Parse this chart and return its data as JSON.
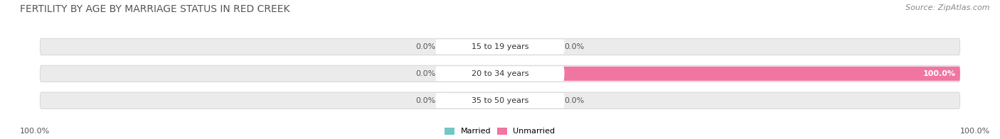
{
  "title": "FERTILITY BY AGE BY MARRIAGE STATUS IN RED CREEK",
  "source": "Source: ZipAtlas.com",
  "categories": [
    "15 to 19 years",
    "20 to 34 years",
    "35 to 50 years"
  ],
  "married_pct": [
    0.0,
    0.0,
    0.0
  ],
  "unmarried_pct": [
    0.0,
    100.0,
    0.0
  ],
  "married_color": "#72c6c6",
  "unmarried_color": "#f075a0",
  "bar_bg_color": "#ebebeb",
  "title_color": "#555555",
  "source_color": "#888888",
  "label_color": "#555555",
  "value_color": "#555555",
  "white_value_color": "#ffffff",
  "bottom_left_label": "100.0%",
  "bottom_right_label": "100.0%",
  "title_fontsize": 10,
  "label_fontsize": 8,
  "source_fontsize": 8,
  "bg_color": "#ffffff"
}
